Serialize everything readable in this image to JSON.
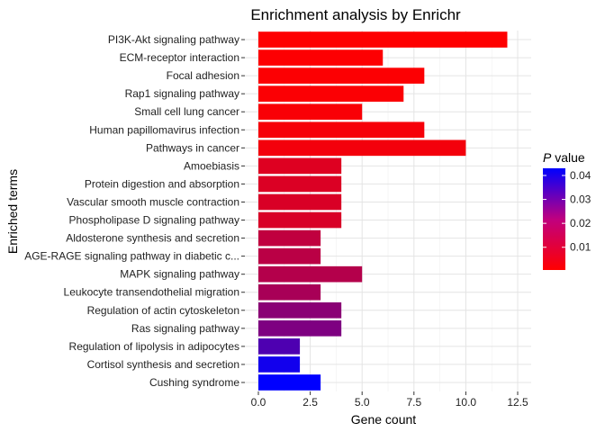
{
  "chart_data": {
    "type": "bar",
    "orientation": "horizontal",
    "title": "Enrichment analysis by Enrichr",
    "xlabel": "Gene count",
    "ylabel": "Enriched terms",
    "xlim": [
      0,
      12.5
    ],
    "xticks": [
      "0.0",
      "2.5",
      "5.0",
      "7.5",
      "10.0",
      "12.5"
    ],
    "grid": true,
    "legend": {
      "title_italic": "P",
      "title_rest": " value",
      "placement": "right",
      "range": [
        0.0005,
        0.043
      ],
      "ticks": [
        {
          "label": "0.01",
          "value": 0.01
        },
        {
          "label": "0.02",
          "value": 0.02
        },
        {
          "label": "0.03",
          "value": 0.03
        },
        {
          "label": "0.04",
          "value": 0.04
        }
      ],
      "color_low": "#FF0000",
      "color_high": "#0000FF"
    },
    "categories": [
      "PI3K-Akt signaling pathway",
      "ECM-receptor interaction",
      "Focal adhesion",
      "Rap1 signaling pathway",
      "Small cell lung cancer",
      "Human papillomavirus infection",
      "Pathways in cancer",
      "Amoebiasis",
      "Protein digestion and absorption",
      "Vascular smooth muscle contraction",
      "Phospholipase D signaling pathway",
      "Aldosterone synthesis and secretion",
      "AGE-RAGE signaling pathway in diabetic c...",
      "MAPK signaling pathway",
      "Leukocyte transendothelial migration",
      "Regulation of actin cytoskeleton",
      "Ras signaling pathway",
      "Regulation of lipolysis in adipocytes",
      "Cortisol synthesis and secretion",
      "Cushing syndrome"
    ],
    "values": [
      12,
      6,
      8,
      7,
      5,
      8,
      10,
      4,
      4,
      4,
      4,
      3,
      3,
      5,
      3,
      4,
      4,
      2,
      2,
      3
    ],
    "p_values": [
      0.0006,
      0.0008,
      0.001,
      0.0012,
      0.0015,
      0.002,
      0.0025,
      0.006,
      0.0065,
      0.0068,
      0.007,
      0.011,
      0.012,
      0.013,
      0.015,
      0.02,
      0.022,
      0.03,
      0.04,
      0.043
    ]
  }
}
